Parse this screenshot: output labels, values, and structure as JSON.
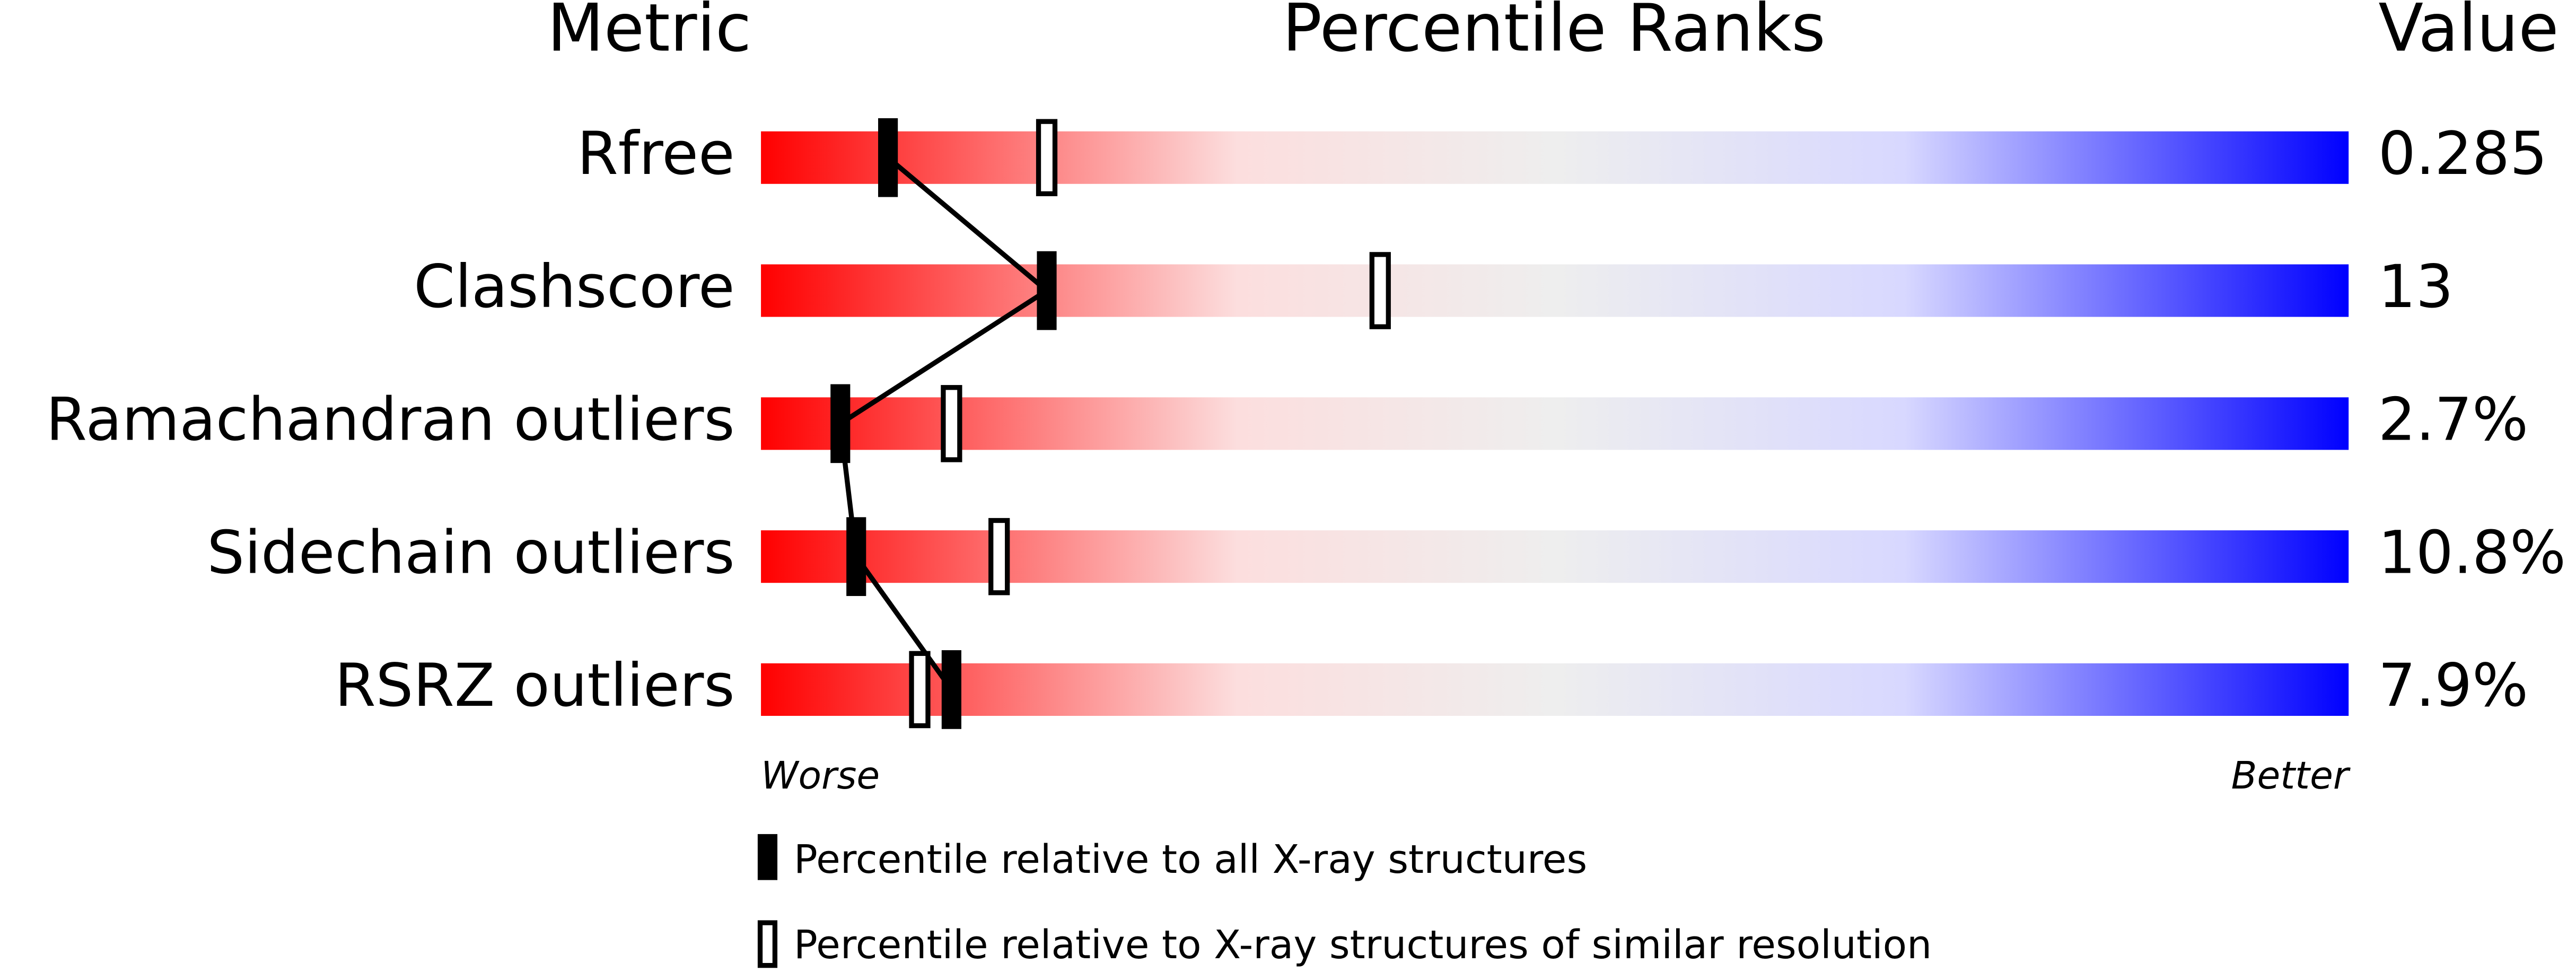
{
  "chart_data": {
    "type": "percentile-slider",
    "headers": {
      "metric": "Metric",
      "ranks": "Percentile Ranks",
      "value": "Value"
    },
    "categories": [
      "Rfree",
      "Clashscore",
      "Ramachandran outliers",
      "Sidechain outliers",
      "RSRZ outliers"
    ],
    "metric_values": [
      "0.285",
      "13",
      "2.7%",
      "10.8%",
      "7.9%"
    ],
    "series": [
      {
        "name": "Percentile relative to all X-ray structures",
        "color": "#000000",
        "values": [
          8,
          18,
          5,
          6,
          12
        ]
      },
      {
        "name": "Percentile relative to X-ray structures of similar resolution",
        "color": "#000000",
        "values": [
          18,
          39,
          12,
          15,
          10
        ]
      }
    ],
    "xlim": [
      0,
      100
    ],
    "low_label": "Worse",
    "high_label": "Better"
  }
}
